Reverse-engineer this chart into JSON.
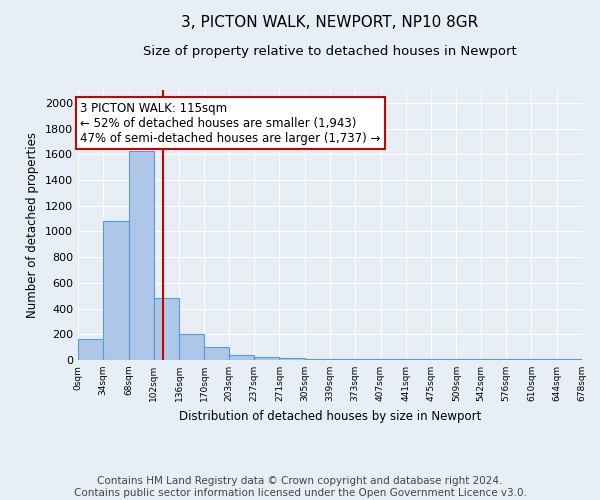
{
  "title": "3, PICTON WALK, NEWPORT, NP10 8GR",
  "subtitle": "Size of property relative to detached houses in Newport",
  "xlabel": "Distribution of detached houses by size in Newport",
  "ylabel": "Number of detached properties",
  "bin_edges": [
    0,
    34,
    68,
    102,
    136,
    170,
    203,
    237,
    271,
    305,
    339,
    373,
    407,
    441,
    475,
    509,
    542,
    576,
    610,
    644,
    678
  ],
  "bar_heights": [
    165,
    1085,
    1625,
    480,
    200,
    100,
    40,
    25,
    15,
    10,
    10,
    10,
    5,
    5,
    5,
    5,
    5,
    5,
    5,
    5
  ],
  "bar_color": "#aec6e8",
  "bar_edge_color": "#5b9bd5",
  "property_size": 115,
  "red_line_color": "#cc0000",
  "annotation_line1": "3 PICTON WALK: 115sqm",
  "annotation_line2": "← 52% of detached houses are smaller (1,943)",
  "annotation_line3": "47% of semi-detached houses are larger (1,737) →",
  "annotation_box_color": "#ffffff",
  "annotation_box_edge_color": "#cc0000",
  "ylim": [
    0,
    2100
  ],
  "yticks": [
    0,
    200,
    400,
    600,
    800,
    1000,
    1200,
    1400,
    1600,
    1800,
    2000
  ],
  "tick_labels": [
    "0sqm",
    "34sqm",
    "68sqm",
    "102sqm",
    "136sqm",
    "170sqm",
    "203sqm",
    "237sqm",
    "271sqm",
    "305sqm",
    "339sqm",
    "373sqm",
    "407sqm",
    "441sqm",
    "475sqm",
    "509sqm",
    "542sqm",
    "576sqm",
    "610sqm",
    "644sqm",
    "678sqm"
  ],
  "footer_line1": "Contains HM Land Registry data © Crown copyright and database right 2024.",
  "footer_line2": "Contains public sector information licensed under the Open Government Licence v3.0.",
  "bg_color": "#e8eef5",
  "plot_bg_color": "#e8eef5",
  "grid_color": "#ffffff",
  "title_fontsize": 11,
  "subtitle_fontsize": 9.5,
  "annotation_fontsize": 8.5,
  "ylabel_fontsize": 8.5,
  "xlabel_fontsize": 8.5,
  "footer_fontsize": 7.5,
  "ytick_fontsize": 8,
  "xtick_fontsize": 6.5
}
